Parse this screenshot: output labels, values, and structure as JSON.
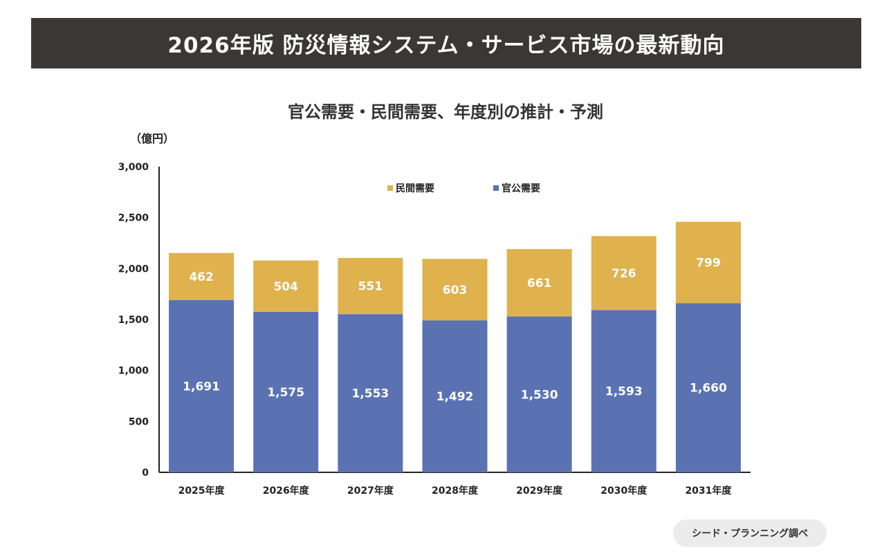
{
  "header": {
    "title": "2026年版 防災情報システム・サービス市場の最新動向"
  },
  "source": "シード・プランニング調べ",
  "colors": {
    "public": "#5b72b2",
    "private": "#dfb24e",
    "banner": "#3a3835"
  },
  "chart_data": {
    "type": "bar",
    "stacked": true,
    "title": "官公需要・民間需要、年度別の推計・予測",
    "ylabel": "（億円）",
    "xlabel": "",
    "categories": [
      "2025年度",
      "2026年度",
      "2027年度",
      "2028年度",
      "2029年度",
      "2030年度",
      "2031年度"
    ],
    "series": [
      {
        "name": "官公需要",
        "values": [
          1691,
          1575,
          1553,
          1492,
          1530,
          1593,
          1660
        ],
        "labels": [
          "1,691",
          "1,575",
          "1,553",
          "1,492",
          "1,530",
          "1,593",
          "1,660"
        ]
      },
      {
        "name": "民間需要",
        "values": [
          462,
          504,
          551,
          603,
          661,
          726,
          799
        ],
        "labels": [
          "462",
          "504",
          "551",
          "603",
          "661",
          "726",
          "799"
        ]
      }
    ],
    "ylim": [
      0,
      3000
    ],
    "yticks": [
      0,
      500,
      1000,
      1500,
      2000,
      2500,
      3000
    ],
    "ytick_labels": [
      "0",
      "500",
      "1,000",
      "1,500",
      "2,000",
      "2,500",
      "3,000"
    ],
    "legend": {
      "placement": "top-center",
      "order": [
        "民間需要",
        "官公需要"
      ]
    },
    "grid": false
  }
}
